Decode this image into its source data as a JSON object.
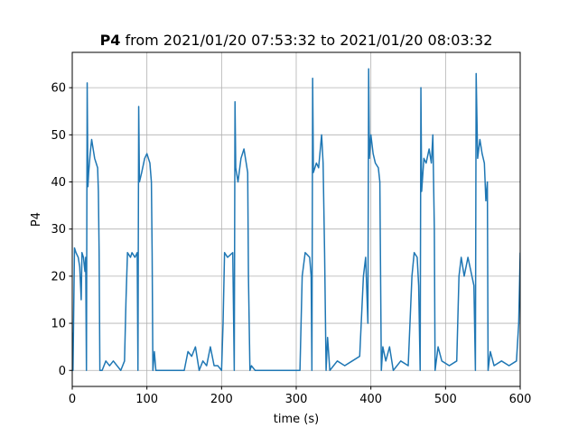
{
  "chart_data": {
    "type": "line",
    "title": {
      "bold": "P4",
      "text": "from 2021/01/20 07:53:32 to 2021/01/20 08:03:32"
    },
    "x_label": "time (s)",
    "y_label": "P4",
    "xlim": [
      0,
      600
    ],
    "xticks": [
      0,
      100,
      200,
      300,
      400,
      500,
      600
    ],
    "ylim": [
      -3.4,
      67.5
    ],
    "yticks": [
      0,
      10,
      20,
      30,
      40,
      50,
      60
    ],
    "grid": true,
    "x": [
      0,
      1,
      2,
      3,
      5,
      8,
      10,
      12,
      13,
      15,
      17,
      18,
      19,
      20,
      21,
      22,
      24,
      26,
      28,
      30,
      32,
      34,
      35,
      36,
      37,
      40,
      45,
      50,
      55,
      60,
      65,
      70,
      72,
      74,
      78,
      80,
      84,
      87,
      88,
      89,
      90,
      93,
      97,
      100,
      104,
      106,
      107,
      108,
      110,
      112,
      150,
      155,
      160,
      165,
      170,
      175,
      180,
      185,
      190,
      195,
      200,
      202,
      204,
      208,
      215,
      217,
      218,
      219,
      222,
      226,
      230,
      233,
      235,
      236,
      238,
      240,
      245,
      300,
      305,
      308,
      312,
      318,
      320,
      321,
      322,
      323,
      327,
      330,
      334,
      336,
      338,
      340,
      342,
      345,
      355,
      365,
      375,
      385,
      390,
      393,
      396,
      397,
      398,
      400,
      403,
      406,
      410,
      412,
      414,
      416,
      420,
      425,
      430,
      440,
      450,
      455,
      458,
      462,
      464,
      466,
      467,
      468,
      471,
      474,
      478,
      481,
      483,
      485,
      486,
      490,
      495,
      505,
      515,
      518,
      521,
      525,
      530,
      538,
      540,
      541,
      543,
      546,
      549,
      552,
      554,
      556,
      557,
      560,
      565,
      575,
      585,
      595,
      598,
      600
    ],
    "series": [
      {
        "name": "P4",
        "color": "#1f77b4",
        "values": [
          8,
          0,
          13,
          26,
          25,
          24,
          22,
          15,
          25,
          24,
          21,
          24,
          0,
          61,
          39,
          42,
          46,
          49,
          47,
          45,
          44,
          43,
          38,
          25,
          0,
          0,
          2,
          1,
          2,
          1,
          0,
          2,
          15,
          25,
          24,
          25,
          24,
          25,
          0,
          56,
          40,
          42,
          45,
          46,
          44,
          40,
          25,
          0,
          4,
          0,
          0,
          4,
          3,
          5,
          0,
          2,
          1,
          5,
          1,
          1,
          0,
          10,
          25,
          24,
          25,
          0,
          57,
          43,
          40,
          45,
          47,
          44,
          42,
          20,
          0,
          1,
          0,
          0,
          0,
          20,
          25,
          24,
          20,
          0,
          62,
          42,
          44,
          43,
          50,
          44,
          25,
          0,
          7,
          0,
          2,
          1,
          2,
          3,
          20,
          24,
          10,
          64,
          45,
          50,
          46,
          44,
          43,
          40,
          0,
          5,
          2,
          5,
          0,
          2,
          1,
          20,
          25,
          24,
          18,
          0,
          60,
          38,
          45,
          44,
          47,
          44,
          50,
          30,
          0,
          5,
          2,
          1,
          2,
          20,
          24,
          20,
          24,
          18,
          0,
          63,
          45,
          49,
          46,
          44,
          36,
          40,
          0,
          4,
          1,
          2,
          1,
          2,
          10,
          25
        ]
      }
    ]
  }
}
